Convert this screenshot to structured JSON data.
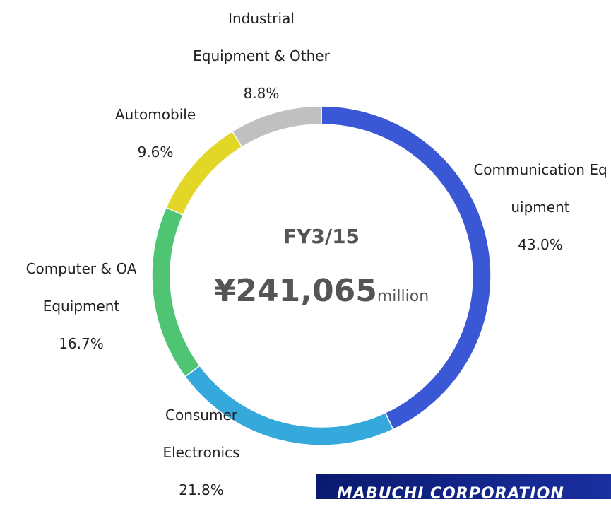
{
  "chart_data": {
    "type": "donut",
    "center_title": "FY3/15",
    "center_value": "¥241,065",
    "center_unit": "million",
    "categories": [
      "Communication Equipment",
      "Consumer Electronics",
      "Computer & OA Equipment",
      "Automobile",
      "Industrial Equipment & Other"
    ],
    "values": [
      43.0,
      21.8,
      16.7,
      9.6,
      8.8
    ],
    "value_labels": [
      "43.0%",
      "21.8%",
      "16.7%",
      "9.6%",
      "8.8%"
    ],
    "colors": [
      "#3a57d6",
      "#36a9dc",
      "#4fc472",
      "#e2d626",
      "#c0c0c0"
    ],
    "footer": "MABUCHI CORPORATION"
  }
}
